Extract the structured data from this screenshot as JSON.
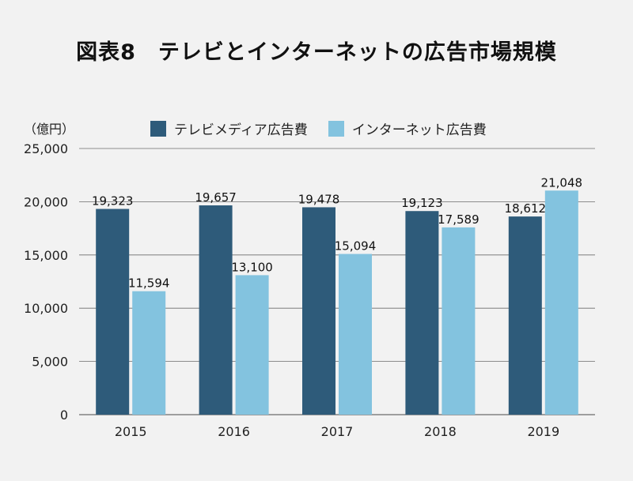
{
  "title": "図表8　テレビとインターネットの広告市場規模",
  "unit_label": "（億円）",
  "colors": {
    "tv": "#2e5b7a",
    "internet": "#83c3df",
    "grid": "#6b6b6b"
  },
  "chart_data": {
    "type": "bar",
    "title": "図表8　テレビとインターネットの広告市場規模",
    "ylabel": "（億円）",
    "xlabel": "",
    "categories": [
      "2015",
      "2016",
      "2017",
      "2018",
      "2019"
    ],
    "ylim": [
      0,
      25000
    ],
    "yticks": [
      0,
      5000,
      10000,
      15000,
      20000,
      25000
    ],
    "ytick_labels": [
      "0",
      "5,000",
      "10,000",
      "15,000",
      "20,000",
      "25,000"
    ],
    "grid": true,
    "legend_position": "top",
    "series": [
      {
        "name": "テレビメディア広告費",
        "values": [
          19323,
          19657,
          19478,
          19123,
          18612
        ],
        "labels": [
          "19,323",
          "19,657",
          "19,478",
          "19,123",
          "18,612"
        ]
      },
      {
        "name": "インターネット広告費",
        "values": [
          11594,
          13100,
          15094,
          17589,
          21048
        ],
        "labels": [
          "11,594",
          "13,100",
          "15,094",
          "17,589",
          "21,048"
        ]
      }
    ]
  }
}
